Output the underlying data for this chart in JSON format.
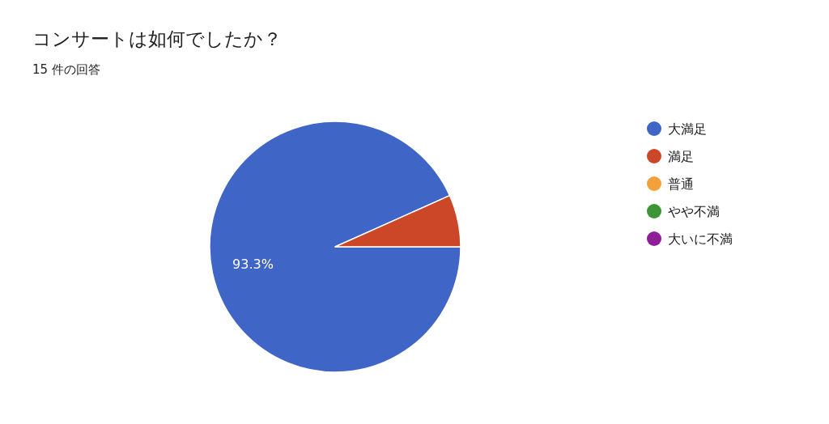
{
  "chart_data": {
    "type": "pie",
    "title": "コンサートは如何でしたか？",
    "subtitle": "15 件の回答",
    "categories": [
      "大満足",
      "満足",
      "普通",
      "やや不満",
      "大いに不満"
    ],
    "values": [
      93.3,
      6.7,
      0,
      0,
      0
    ],
    "colors": [
      "#3f65c7",
      "#cb4727",
      "#f3a23b",
      "#3d9535",
      "#8f1f98"
    ],
    "value_labels": [
      "93.3%",
      null,
      null,
      null,
      null
    ],
    "legend": "right"
  }
}
